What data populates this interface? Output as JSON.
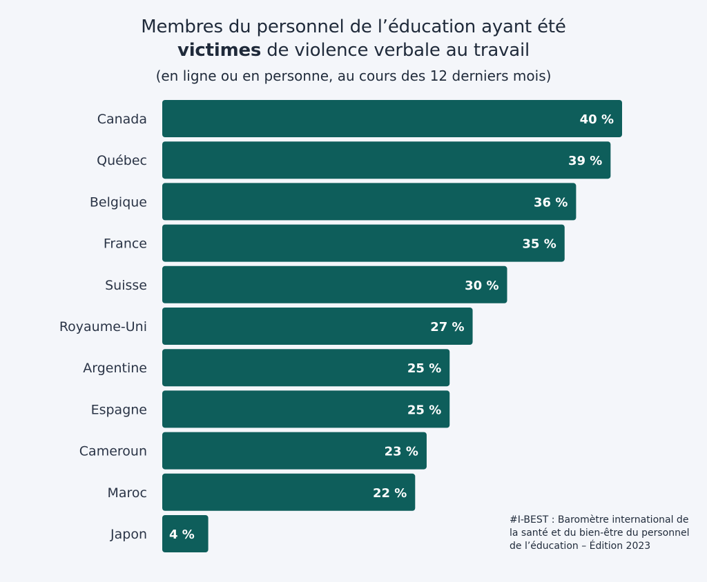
{
  "title": {
    "line1": "Membres du personnel de l’éducation ayant été",
    "line2_bold": "victimes",
    "line2_rest": " de violence verbale au travail",
    "subtitle": "(en ligne ou en personne, au cours des 12 derniers mois)"
  },
  "footnote": {
    "line1": "#I-BEST : Baromètre international de",
    "line2": "la santé et du bien-être du personnel",
    "line3": "de l’éducation – Édition 2023"
  },
  "colors": {
    "bar": "#0e5e5b",
    "bar_label": "#ffffff",
    "category_label": "#2a3446",
    "background": "#f4f6fa"
  },
  "chart_data": {
    "type": "bar",
    "orientation": "horizontal",
    "categories": [
      "Canada",
      "Québec",
      "Belgique",
      "France",
      "Suisse",
      "Royaume-Uni",
      "Argentine",
      "Espagne",
      "Cameroun",
      "Maroc",
      "Japon"
    ],
    "values": [
      40,
      39,
      36,
      35,
      30,
      27,
      25,
      25,
      23,
      22,
      4
    ],
    "value_labels": [
      "40 %",
      "39 %",
      "36 %",
      "35 %",
      "30 %",
      "27 %",
      "25 %",
      "25 %",
      "23 %",
      "22 %",
      "4 %"
    ],
    "unit": "%",
    "xlim": [
      0,
      40
    ],
    "grid": false,
    "legend": "none"
  }
}
